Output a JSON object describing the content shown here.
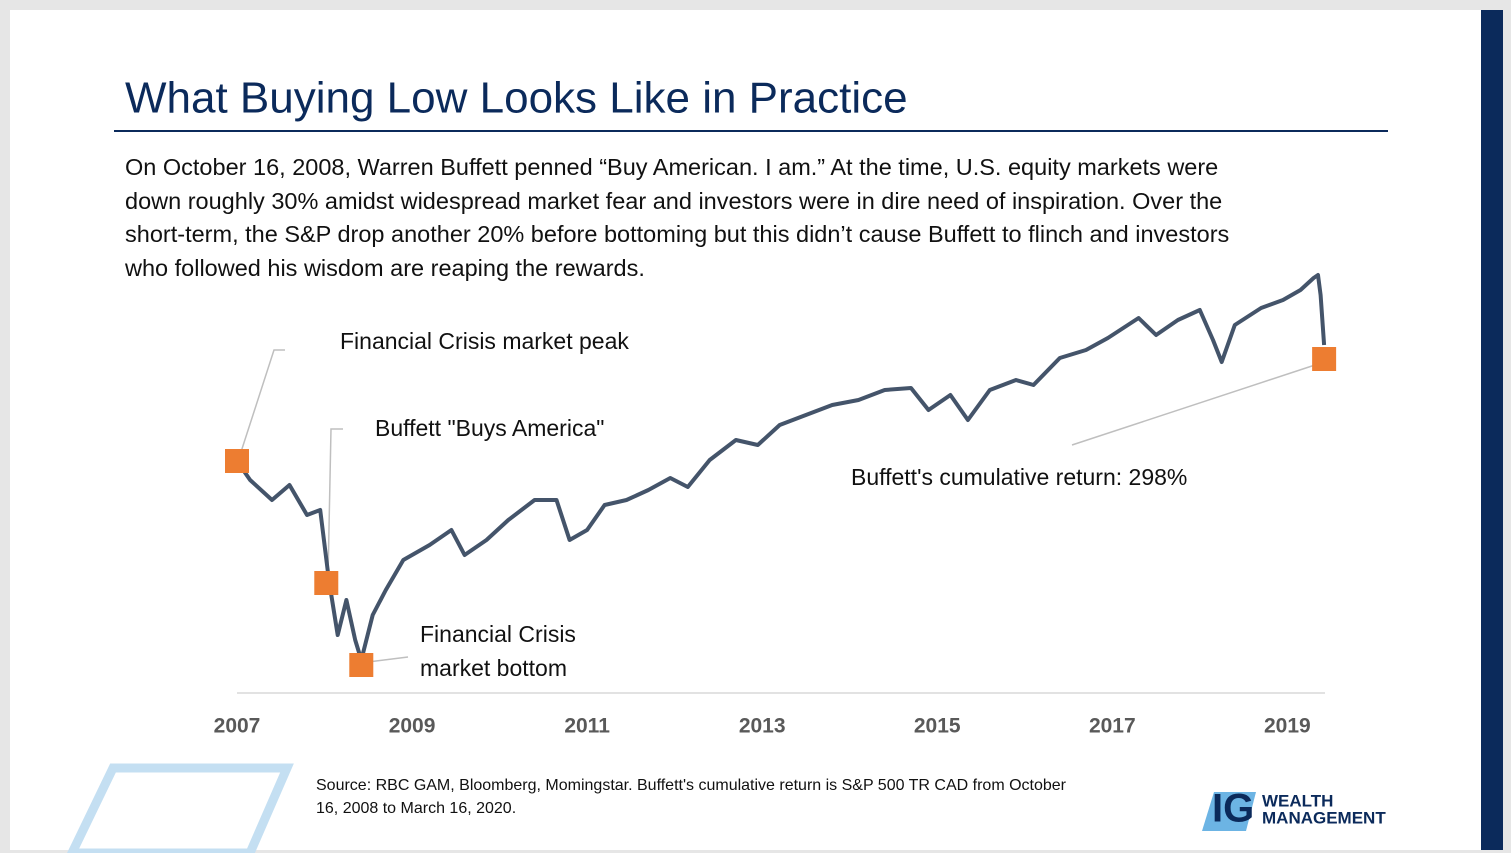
{
  "title": "What Buying Low Looks Like in Practice",
  "paragraph": [
    "On October 16, 2008, Warren Buffett penned “Buy American. I am.” At the time, U.S. equity markets were",
    "down roughly 30% amidst widespread market fear and investors were in dire need of inspiration. Over the",
    "short-term, the S&P drop another 20% before bottoming but this didn’t cause Buffett to flinch and investors",
    "who followed his wisdom are reaping the rewards."
  ],
  "source": [
    "Source: RBC GAM, Bloomberg, Momingstar. Buffett's cumulative return is S&P 500 TR CAD from October",
    "16, 2008 to March 16, 2020."
  ],
  "logo": {
    "mark": "IG",
    "line1": "WEALTH",
    "line2": "MANAGEMENT"
  },
  "chart_data": {
    "type": "line",
    "x": [
      2007.0,
      2007.15,
      2007.4,
      2007.6,
      2007.8,
      2007.95,
      2008.05,
      2008.15,
      2008.25,
      2008.35,
      2008.42,
      2008.55,
      2008.7,
      2008.9,
      2009.2,
      2009.45,
      2009.6,
      2009.85,
      2010.1,
      2010.4,
      2010.65,
      2010.8,
      2011.0,
      2011.2,
      2011.45,
      2011.7,
      2011.95,
      2012.15,
      2012.4,
      2012.7,
      2012.95,
      2013.2,
      2013.5,
      2013.8,
      2014.1,
      2014.4,
      2014.7,
      2014.9,
      2015.15,
      2015.35,
      2015.6,
      2015.9,
      2016.1,
      2016.4,
      2016.7,
      2016.95,
      2017.3,
      2017.5,
      2017.75,
      2018.0,
      2018.15,
      2018.25,
      2018.4,
      2018.7,
      2018.95,
      2019.15,
      2019.3,
      2019.35,
      2019.38,
      2019.42
    ],
    "series": [
      {
        "color": "#44546a",
        "values": [
          239,
          220,
          200,
          215,
          185,
          190,
          120,
          65,
          100,
          60,
          40,
          85,
          110,
          140,
          155,
          170,
          145,
          160,
          180,
          200,
          200,
          160,
          170,
          195,
          200,
          210,
          222,
          213,
          240,
          260,
          255,
          275,
          285,
          295,
          300,
          310,
          312,
          290,
          305,
          280,
          310,
          320,
          315,
          342,
          350,
          362,
          382,
          365,
          380,
          390,
          360,
          338,
          375,
          392,
          400,
          410,
          422,
          425,
          405,
          355
        ]
      },
      {
        "color": "#ed7d31",
        "style": "markers",
        "x": [
          2007.0,
          2008.02,
          2008.42,
          2019.42
        ],
        "values": [
          239,
          117,
          35,
          341
        ]
      }
    ],
    "xlim": [
      2007,
      2019.43
    ],
    "xticks": [
      2007,
      2009,
      2011,
      2013,
      2015,
      2017,
      2019
    ],
    "annotations": [
      "Financial Crisis market peak",
      "Buffett \"Buys America\"",
      "Financial Crisis",
      "market bottom",
      "Buffett's cumulative return: 298%"
    ]
  }
}
